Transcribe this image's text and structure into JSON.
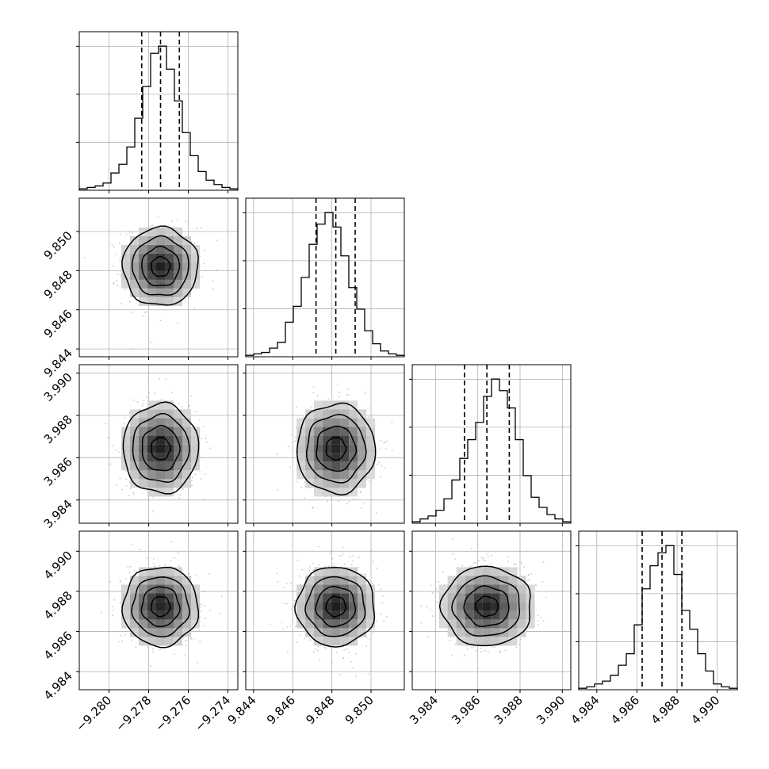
{
  "chart_data": {
    "type": "corner",
    "n_params": 4,
    "histogram_bins": 20,
    "quantiles": [
      0.16,
      0.5,
      0.84
    ],
    "contour_levels": [
      0.5,
      1.0,
      1.5,
      2.0
    ],
    "params": [
      {
        "median": -9.2774,
        "q16": -9.27835,
        "q84": -9.27645,
        "range": [
          -9.2815,
          -9.2735
        ],
        "ticks": [
          -9.28,
          -9.278,
          -9.276,
          -9.274
        ],
        "tick_labels": [
          "−9.280",
          "−9.278",
          "−9.276",
          "−9.274"
        ],
        "hist_counts": [
          1,
          2,
          3,
          5,
          12,
          18,
          30,
          50,
          72,
          95,
          100,
          84,
          62,
          40,
          24,
          13,
          7,
          4,
          2,
          1
        ]
      },
      {
        "median": 9.8482,
        "q16": 9.84719,
        "q84": 9.84919,
        "range": [
          9.8436,
          9.8517
        ],
        "ticks": [
          9.844,
          9.846,
          9.848,
          9.85
        ],
        "tick_labels": [
          "9.844",
          "9.846",
          "9.848",
          "9.850"
        ],
        "hist_counts": [
          1,
          2,
          3,
          6,
          10,
          24,
          35,
          55,
          78,
          92,
          100,
          90,
          70,
          48,
          33,
          18,
          9,
          4,
          2,
          1
        ]
      },
      {
        "median": 3.98643,
        "q16": 3.98537,
        "q84": 3.98749,
        "range": [
          3.9829,
          3.9904
        ],
        "ticks": [
          3.984,
          3.986,
          3.988,
          3.99
        ],
        "tick_labels": [
          "3.984",
          "3.986",
          "3.988",
          "3.990"
        ],
        "hist_counts": [
          1,
          3,
          5,
          9,
          17,
          30,
          45,
          58,
          70,
          88,
          100,
          92,
          80,
          58,
          33,
          18,
          11,
          6,
          3,
          1
        ]
      },
      {
        "median": 4.98725,
        "q16": 4.98626,
        "q84": 4.98824,
        "range": [
          4.9831,
          4.991
        ],
        "ticks": [
          4.984,
          4.986,
          4.988,
          4.99
        ],
        "tick_labels": [
          "4.984",
          "4.986",
          "4.988",
          "4.990"
        ],
        "hist_counts": [
          1,
          2,
          4,
          6,
          10,
          17,
          25,
          45,
          70,
          86,
          95,
          100,
          80,
          55,
          42,
          25,
          13,
          4,
          2,
          1
        ]
      }
    ],
    "pairs": [
      {
        "row": 1,
        "col": 0,
        "correlation": 0.0
      },
      {
        "row": 2,
        "col": 0,
        "correlation": 0.0
      },
      {
        "row": 2,
        "col": 1,
        "correlation": 0.0
      },
      {
        "row": 3,
        "col": 0,
        "correlation": 0.0
      },
      {
        "row": 3,
        "col": 1,
        "correlation": 0.0
      },
      {
        "row": 3,
        "col": 2,
        "correlation": 0.0
      }
    ],
    "grid": true,
    "colors": {
      "line": "#000000",
      "scatter": "#b0b0b0",
      "grid": "#b0b0b0",
      "density_low": "#f0f0f0",
      "density_high": "#1a1a1a"
    }
  }
}
